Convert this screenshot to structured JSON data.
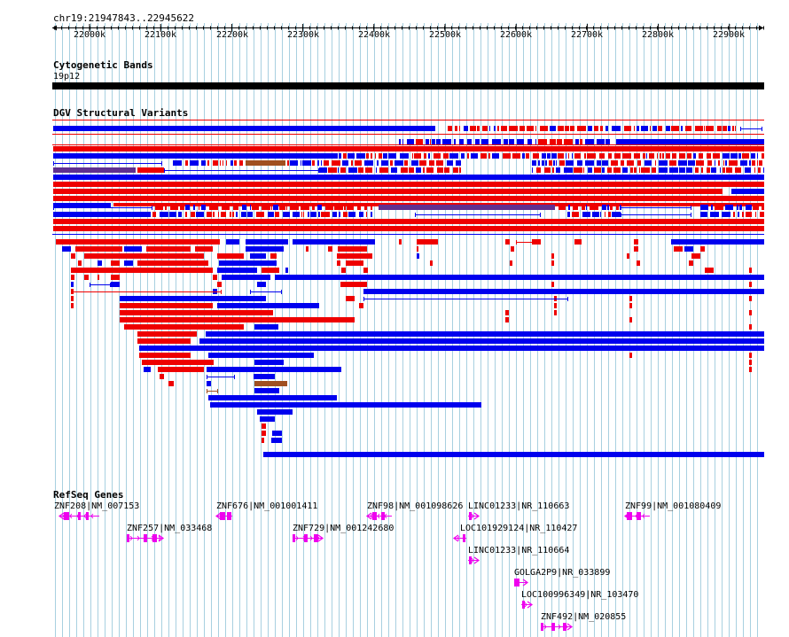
{
  "ruler": {
    "location": "chr19:21947843..22945622",
    "ticks": [
      "22000k",
      "22100k",
      "22200k",
      "22300k",
      "22400k",
      "22500k",
      "22600k",
      "22700k",
      "22800k",
      "22900k"
    ]
  },
  "cytoband": {
    "title": "Cytogenetic Bands",
    "band": "19p12"
  },
  "dgv": {
    "title": "DGV Structural Variants"
  },
  "refseq": {
    "title": "RefSeq Genes",
    "genes": [
      {
        "label": "ZNF208|NM_007153"
      },
      {
        "label": "ZNF257|NM_033468"
      },
      {
        "label": "ZNF676|NM_001001411"
      },
      {
        "label": "ZNF729|NM_001242680"
      },
      {
        "label": "ZNF98|NM_001098626"
      },
      {
        "label": "LINC01233|NR_110663"
      },
      {
        "label": "LOC101929124|NR_110427"
      },
      {
        "label": "LINC01233|NR_110664"
      },
      {
        "label": "GOLGA2P9|NR_033899"
      },
      {
        "label": "LOC100996349|NR_103470"
      },
      {
        "label": "ZNF492|NM_020855"
      },
      {
        "label": "ZNF99|NM_001080409"
      }
    ]
  },
  "colors": {
    "gain": "#0000ee",
    "loss": "#ee0000",
    "inversion": "#a05020",
    "complex": "#603090",
    "gene": "#ee00ee",
    "grid": "#a8d0e0"
  }
}
